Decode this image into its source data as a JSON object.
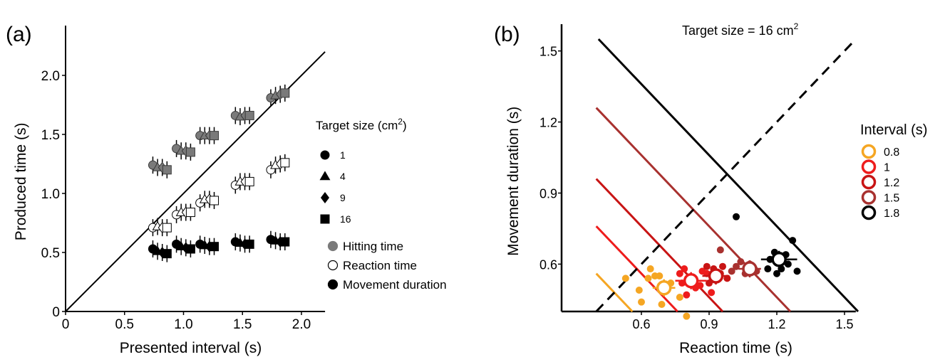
{
  "chart_data": [
    {
      "panel_label": "(a)",
      "type": "scatter",
      "title": "",
      "xlabel": "Presented interval (s)",
      "ylabel": "Produced time (s)",
      "xlim": [
        0,
        2.2
      ],
      "ylim": [
        0,
        2.2
      ],
      "xticks": [
        "0",
        "0.5",
        "1.0",
        "1.5",
        "2.0"
      ],
      "xtick_values": [
        0,
        0.5,
        1.0,
        1.5,
        2.0
      ],
      "yticks": [
        "0",
        "0.5",
        "1.0",
        "1.5",
        "2.0"
      ],
      "ytick_values": [
        0,
        0.5,
        1.0,
        1.5,
        2.0
      ],
      "reference_line": "identity",
      "legend_size_title": "Target size (cm",
      "legend_size_title_sup": "2",
      "legend_size_title_end": ")",
      "legend_sizes": [
        {
          "label": "1",
          "marker": "circle"
        },
        {
          "label": "4",
          "marker": "triangle"
        },
        {
          "label": "9",
          "marker": "diamond"
        },
        {
          "label": "16",
          "marker": "square"
        }
      ],
      "intervals": [
        0.8,
        1.0,
        1.2,
        1.5,
        1.8
      ],
      "marker_x_offsets": [
        -0.06,
        -0.02,
        0.02,
        0.06
      ],
      "series": [
        {
          "name": "Hitting time",
          "style": "gray",
          "values": [
            [
              1.24,
              1.22,
              1.22,
              1.2
            ],
            [
              1.38,
              1.36,
              1.36,
              1.35
            ],
            [
              1.49,
              1.49,
              1.49,
              1.49
            ],
            [
              1.66,
              1.65,
              1.66,
              1.66
            ],
            [
              1.81,
              1.83,
              1.84,
              1.85
            ]
          ]
        },
        {
          "name": "Reaction time",
          "style": "open",
          "values": [
            [
              0.71,
              0.72,
              0.71,
              0.71
            ],
            [
              0.82,
              0.84,
              0.84,
              0.84
            ],
            [
              0.92,
              0.95,
              0.95,
              0.94
            ],
            [
              1.07,
              1.1,
              1.1,
              1.1
            ],
            [
              1.2,
              1.24,
              1.25,
              1.26
            ]
          ]
        },
        {
          "name": "Movement duration",
          "style": "black",
          "values": [
            [
              0.53,
              0.51,
              0.5,
              0.49
            ],
            [
              0.57,
              0.55,
              0.54,
              0.53
            ],
            [
              0.57,
              0.56,
              0.55,
              0.55
            ],
            [
              0.59,
              0.58,
              0.57,
              0.57
            ],
            [
              0.61,
              0.6,
              0.59,
              0.59
            ]
          ]
        }
      ]
    },
    {
      "panel_label": "(b)",
      "type": "scatter",
      "annotation": "Target size = 16 cm",
      "annotation_sup": "2",
      "xlabel": "Reaction time (s)",
      "ylabel": "Movement duration (s)",
      "xlim": [
        0.4,
        1.55
      ],
      "ylim": [
        0.4,
        1.55
      ],
      "xticks": [
        "0.6",
        "0.9",
        "1.2",
        "1.5"
      ],
      "xtick_values": [
        0.6,
        0.9,
        1.2,
        1.5
      ],
      "yticks": [
        "0.6",
        "0.9",
        "1.2",
        "1.5"
      ],
      "ytick_values": [
        0.6,
        0.9,
        1.2,
        1.5
      ],
      "legend_title": "Interval (s)",
      "series": [
        {
          "name": "0.8",
          "color": "#f5a623",
          "sum": 0.96,
          "mean": [
            0.7,
            0.5
          ],
          "xerr": 0.05,
          "points": [
            [
              0.53,
              0.54
            ],
            [
              0.59,
              0.49
            ],
            [
              0.63,
              0.54
            ],
            [
              0.66,
              0.55
            ],
            [
              0.68,
              0.55
            ],
            [
              0.64,
              0.58
            ],
            [
              0.69,
              0.43
            ],
            [
              0.73,
              0.52
            ],
            [
              0.77,
              0.46
            ],
            [
              0.6,
              0.44
            ],
            [
              0.8,
              0.38
            ]
          ]
        },
        {
          "name": "1",
          "color": "#ee1c1c",
          "sum": 1.16,
          "mean": [
            0.82,
            0.53
          ],
          "xerr": 0.07,
          "points": [
            [
              0.77,
              0.56
            ],
            [
              0.78,
              0.52
            ],
            [
              0.8,
              0.47
            ],
            [
              0.84,
              0.5
            ],
            [
              0.86,
              0.51
            ],
            [
              0.87,
              0.57
            ],
            [
              0.89,
              0.56
            ],
            [
              0.91,
              0.48
            ],
            [
              0.79,
              0.58
            ]
          ]
        },
        {
          "name": "1.2",
          "color": "#c81414",
          "sum": 1.36,
          "mean": [
            0.93,
            0.55
          ],
          "xerr": 0.06,
          "points": [
            [
              0.89,
              0.59
            ],
            [
              0.92,
              0.58
            ],
            [
              0.95,
              0.56
            ],
            [
              0.96,
              0.59
            ],
            [
              0.98,
              0.54
            ],
            [
              0.9,
              0.52
            ]
          ]
        },
        {
          "name": "1.5",
          "color": "#a8312f",
          "sum": 1.66,
          "mean": [
            1.08,
            0.58
          ],
          "xerr": 0.05,
          "points": [
            [
              0.95,
              0.66
            ],
            [
              1.02,
              0.59
            ],
            [
              1.04,
              0.61
            ],
            [
              1.06,
              0.56
            ],
            [
              1.08,
              0.6
            ],
            [
              1.1,
              0.58
            ],
            [
              1.11,
              0.57
            ],
            [
              1.0,
              0.57
            ]
          ]
        },
        {
          "name": "1.8",
          "color": "#000000",
          "sum": 1.96,
          "mean": [
            1.21,
            0.62
          ],
          "xerr": 0.08,
          "points": [
            [
              1.02,
              0.8
            ],
            [
              1.17,
              0.62
            ],
            [
              1.19,
              0.65
            ],
            [
              1.22,
              0.58
            ],
            [
              1.24,
              0.64
            ],
            [
              1.27,
              0.7
            ],
            [
              1.29,
              0.57
            ],
            [
              1.25,
              0.6
            ],
            [
              1.16,
              0.58
            ],
            [
              1.2,
              0.56
            ]
          ]
        }
      ]
    }
  ]
}
